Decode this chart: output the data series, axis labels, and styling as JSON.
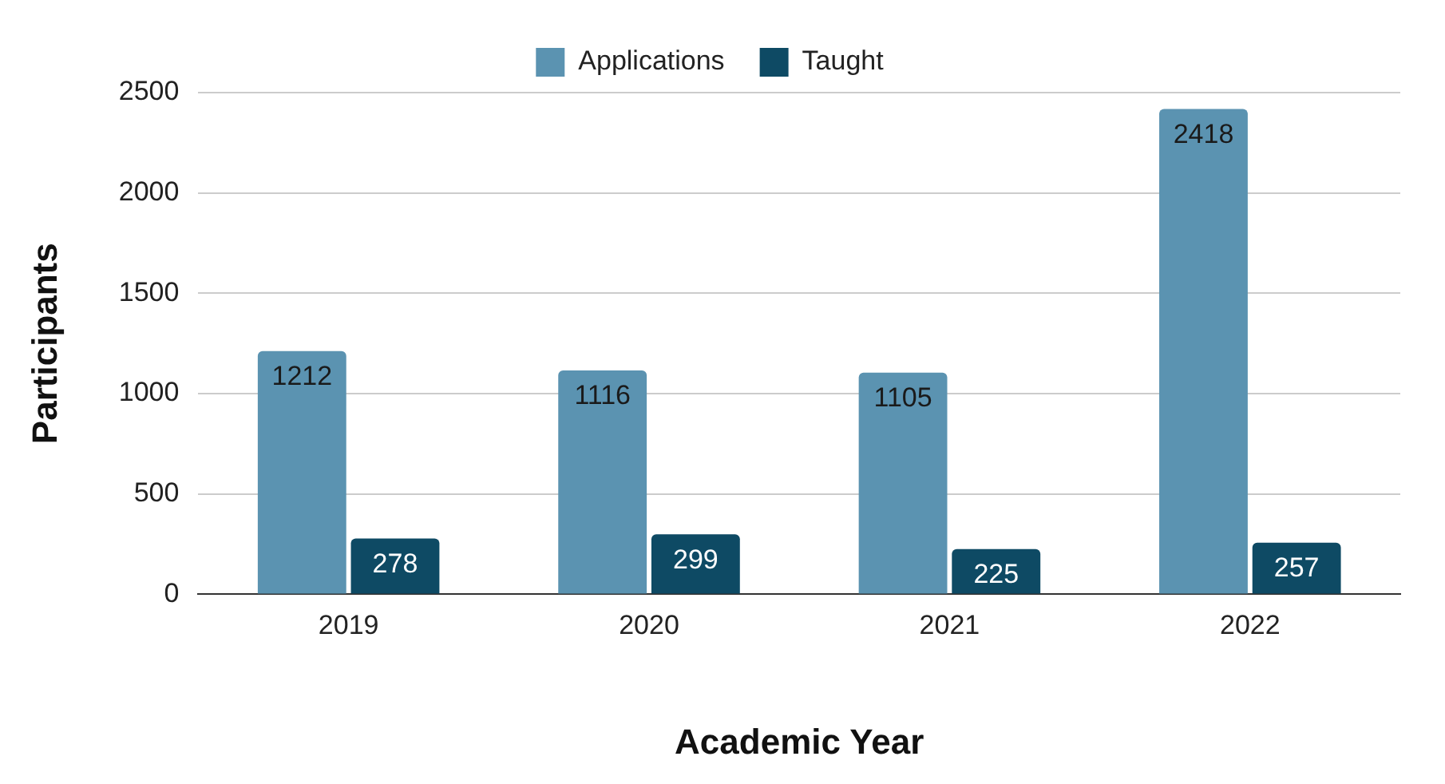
{
  "chart_data": {
    "type": "bar",
    "xlabel": "Academic Year",
    "ylabel": "Participants",
    "categories": [
      "2019",
      "2020",
      "2021",
      "2022"
    ],
    "series": [
      {
        "name": "Applications",
        "color": "#5b93b1",
        "values": [
          1212,
          1116,
          1105,
          2418
        ]
      },
      {
        "name": "Taught",
        "color": "#0e4a64",
        "values": [
          278,
          299,
          225,
          257
        ]
      }
    ],
    "ylim": [
      0,
      2500
    ],
    "yticks": [
      0,
      500,
      1000,
      1500,
      2000,
      2500
    ],
    "grid": "y",
    "legend": "top",
    "data_labels": true
  }
}
